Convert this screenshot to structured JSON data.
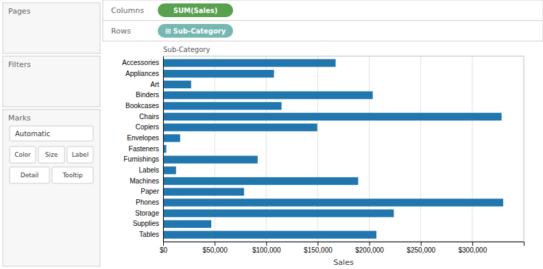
{
  "chart_data": {
    "type": "bar",
    "orientation": "horizontal",
    "categories": [
      "Accessories",
      "Appliances",
      "Art",
      "Binders",
      "Bookcases",
      "Chairs",
      "Copiers",
      "Envelopes",
      "Fasteners",
      "Furnishings",
      "Labels",
      "Machines",
      "Paper",
      "Phones",
      "Storage",
      "Supplies",
      "Tables"
    ],
    "values": [
      167380,
      107532,
      27119,
      203413,
      114880,
      328449,
      149528,
      16476,
      3024,
      91705,
      12486,
      189238,
      78479,
      330007,
      223844,
      46674,
      206966
    ],
    "color": "#2176ae",
    "xlabel": "Sales",
    "ylabel": "Sub-Category",
    "xlim": [
      0,
      350000
    ],
    "xticks": [
      {
        "value": 0,
        "label": "$0"
      },
      {
        "value": 50000,
        "label": "$50,000"
      },
      {
        "value": 100000,
        "label": "$100,000"
      },
      {
        "value": 150000,
        "label": "$150,000"
      },
      {
        "value": 200000,
        "label": "$200,000"
      },
      {
        "value": 250000,
        "label": "$250,000"
      },
      {
        "value": 300000,
        "label": "$300,000"
      }
    ],
    "grid": true,
    "annotations": [
      "Pages",
      "Filters",
      "Marks",
      "Automatic",
      "Color",
      "Size",
      "Label",
      "Detail",
      "Tooltip",
      "Columns",
      "SUM(Sales)",
      "Rows",
      "⊞ Sub-Category"
    ]
  }
}
